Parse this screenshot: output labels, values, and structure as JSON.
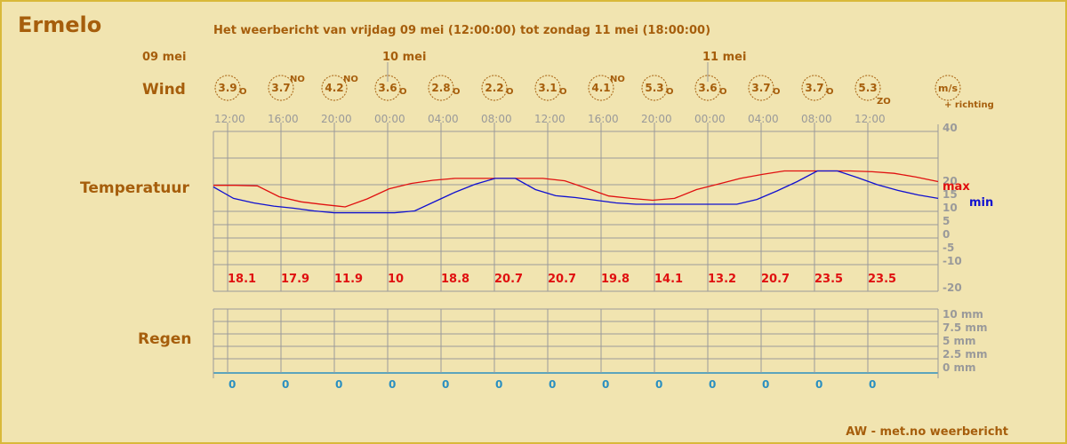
{
  "header": {
    "location": "Ermelo",
    "subtitle": "Het weerbericht van vrijdag 09 mei (12:00:00) tot zondag 11 mei (18:00:00)",
    "footer": "AW - met.no weerbericht"
  },
  "labels": {
    "wind": "Wind",
    "temperature": "Temperatuur",
    "rain": "Regen",
    "wind_unit": "m/s",
    "wind_direction_note": "+ richting",
    "max": "max",
    "min": "min"
  },
  "colors": {
    "background": "#f1e4b0",
    "brown": "#a65e0c",
    "max_line": "#e01010",
    "min_line": "#1010d0",
    "rain_value": "#2a8fc0",
    "grid": "#9a9a9a"
  },
  "chart_data": {
    "type": "line",
    "date_labels": [
      "09 mei",
      "10 mei",
      "11 mei"
    ],
    "time_ticks": [
      "12:00",
      "16:00",
      "20:00",
      "00:00",
      "04:00",
      "08:00",
      "12:00",
      "16:00",
      "20:00",
      "00:00",
      "04:00",
      "08:00",
      "12:00"
    ],
    "wind": [
      {
        "speed": "3.9",
        "dir": "O"
      },
      {
        "speed": "3.7",
        "dir": "NO"
      },
      {
        "speed": "4.2",
        "dir": "NO"
      },
      {
        "speed": "3.6",
        "dir": "O"
      },
      {
        "speed": "2.8",
        "dir": "O"
      },
      {
        "speed": "2.2",
        "dir": "O"
      },
      {
        "speed": "3.1",
        "dir": "O"
      },
      {
        "speed": "4.1",
        "dir": "NO"
      },
      {
        "speed": "5.3",
        "dir": "O"
      },
      {
        "speed": "3.6",
        "dir": "O"
      },
      {
        "speed": "3.7",
        "dir": "O"
      },
      {
        "speed": "3.7",
        "dir": "O"
      },
      {
        "speed": "5.3",
        "dir": "ZO"
      }
    ],
    "temperature_axis": {
      "ticks": [
        "40",
        "20",
        "15",
        "10",
        "5",
        "0",
        "-5",
        "-10",
        "-20"
      ]
    },
    "max_labels": [
      "18.1",
      "17.9",
      "11.9",
      "10",
      "18.8",
      "20.7",
      "20.7",
      "19.8",
      "14.1",
      "13.2",
      "20.7",
      "23.5",
      "23.5"
    ],
    "series": [
      {
        "name": "max",
        "values": [
          18.1,
          18.1,
          17.9,
          13.8,
          11.9,
          10.9,
          10,
          13,
          16.8,
          18.8,
          20,
          20.7,
          20.7,
          20.7,
          20.7,
          20.7,
          19.8,
          17,
          14.1,
          13.2,
          12.5,
          13.2,
          16.5,
          18.6,
          20.7,
          22.2,
          23.5,
          23.5,
          23.5,
          23.5,
          23.2,
          22.6,
          21.2,
          19.5
        ]
      },
      {
        "name": "min",
        "values": [
          17.5,
          13.2,
          11.5,
          10.3,
          9.5,
          8.5,
          7.8,
          7.8,
          7.8,
          7.8,
          8.5,
          12,
          15.5,
          18.5,
          20.7,
          20.7,
          16.5,
          14.2,
          13.5,
          12.5,
          11.5,
          11,
          11,
          11,
          11,
          11,
          11,
          12.8,
          16,
          19.5,
          23.5,
          23.5,
          21,
          18.3,
          16.2,
          14.5,
          13.2
        ]
      }
    ],
    "rain_axis": {
      "ticks": [
        "10 mm",
        "7.5 mm",
        "5 mm",
        "2.5 mm",
        "0 mm"
      ]
    },
    "rain_values": [
      "0",
      "0",
      "0",
      "0",
      "0",
      "0",
      "0",
      "0",
      "0",
      "0",
      "0",
      "0",
      "0"
    ]
  }
}
